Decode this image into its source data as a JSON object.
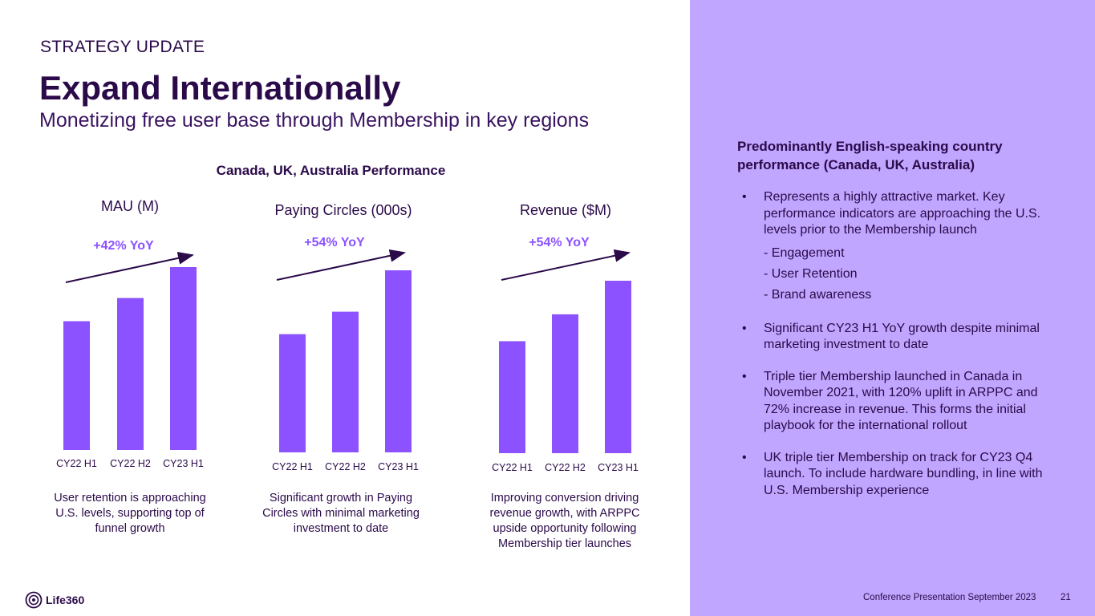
{
  "header": {
    "eyebrow": "STRATEGY UPDATE",
    "title": "Expand Internationally",
    "subtitle": "Monetizing free user base through Membership in key regions"
  },
  "section_title": "Canada, UK, Australia Performance",
  "chart_data": [
    {
      "type": "bar",
      "title": "MAU (M)",
      "annotation": "+42% YoY",
      "categories": [
        "CY22 H1",
        "CY22 H2",
        "CY23 H1"
      ],
      "values": [
        1.0,
        1.18,
        1.42
      ],
      "ylim": [
        0,
        1.42
      ],
      "caption": "User retention is approaching U.S. levels, supporting top of funnel growth"
    },
    {
      "type": "bar",
      "title": "Paying Circles (000s)",
      "annotation": "+54% YoY",
      "categories": [
        "CY22 H1",
        "CY22 H2",
        "CY23 H1"
      ],
      "values": [
        1.0,
        1.19,
        1.54
      ],
      "ylim": [
        0,
        1.54
      ],
      "caption": "Significant growth in Paying Circles with minimal marketing investment to date"
    },
    {
      "type": "bar",
      "title": "Revenue ($M)",
      "annotation": "+54% YoY",
      "categories": [
        "CY22 H1",
        "CY22 H2",
        "CY23 H1"
      ],
      "values": [
        1.0,
        1.24,
        1.54
      ],
      "ylim": [
        0,
        1.54
      ],
      "caption": "Improving conversion driving revenue growth, with ARPPC upside opportunity following Membership tier launches"
    }
  ],
  "right_panel": {
    "heading": "Predominantly English-speaking country performance (Canada, UK, Australia)",
    "bullet_char": "•",
    "bullets": [
      {
        "text": "Represents a highly attractive market. Key performance indicators are approaching the U.S. levels prior to the Membership launch",
        "sub": [
          "- Engagement",
          "- User Retention",
          "- Brand awareness"
        ]
      },
      {
        "text": "Significant CY23 H1 YoY growth despite minimal marketing investment to date"
      },
      {
        "text": "Triple tier Membership launched in Canada in November 2021, with 120% uplift in ARPPC and 72% increase in revenue. This forms the initial playbook for the international rollout"
      },
      {
        "text": "UK triple tier Membership on track for CY23 Q4 launch. To include hardware bundling, in line with U.S. Membership experience"
      }
    ]
  },
  "footer": {
    "logo_text": "Life360",
    "presentation": "Conference Presentation September 2023",
    "page_number": "21"
  },
  "colors": {
    "bar": "#8c52ff",
    "panel": "#c0a6fe",
    "text": "#2b0a4a",
    "arrow": "#2b0a4a"
  }
}
